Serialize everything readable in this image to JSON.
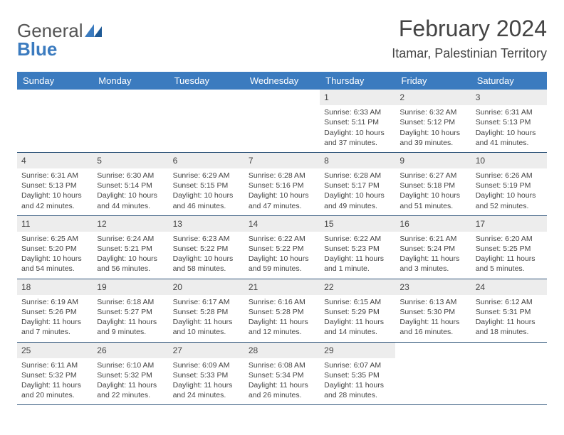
{
  "logo": {
    "part1": "General",
    "part2": "Blue"
  },
  "month_title": "February 2024",
  "location": "Itamar, Palestinian Territory",
  "weekdays": [
    "Sunday",
    "Monday",
    "Tuesday",
    "Wednesday",
    "Thursday",
    "Friday",
    "Saturday"
  ],
  "colors": {
    "header_bg": "#3b7bbf",
    "header_fg": "#ffffff",
    "daynum_bg": "#ededed",
    "rule": "#30557a",
    "text": "#444444"
  },
  "calendar": {
    "first_weekday_index": 4,
    "weeks": [
      [
        null,
        null,
        null,
        null,
        {
          "n": "1",
          "sunrise": "6:33 AM",
          "sunset": "5:11 PM",
          "daylight": "10 hours and 37 minutes."
        },
        {
          "n": "2",
          "sunrise": "6:32 AM",
          "sunset": "5:12 PM",
          "daylight": "10 hours and 39 minutes."
        },
        {
          "n": "3",
          "sunrise": "6:31 AM",
          "sunset": "5:13 PM",
          "daylight": "10 hours and 41 minutes."
        }
      ],
      [
        {
          "n": "4",
          "sunrise": "6:31 AM",
          "sunset": "5:13 PM",
          "daylight": "10 hours and 42 minutes."
        },
        {
          "n": "5",
          "sunrise": "6:30 AM",
          "sunset": "5:14 PM",
          "daylight": "10 hours and 44 minutes."
        },
        {
          "n": "6",
          "sunrise": "6:29 AM",
          "sunset": "5:15 PM",
          "daylight": "10 hours and 46 minutes."
        },
        {
          "n": "7",
          "sunrise": "6:28 AM",
          "sunset": "5:16 PM",
          "daylight": "10 hours and 47 minutes."
        },
        {
          "n": "8",
          "sunrise": "6:28 AM",
          "sunset": "5:17 PM",
          "daylight": "10 hours and 49 minutes."
        },
        {
          "n": "9",
          "sunrise": "6:27 AM",
          "sunset": "5:18 PM",
          "daylight": "10 hours and 51 minutes."
        },
        {
          "n": "10",
          "sunrise": "6:26 AM",
          "sunset": "5:19 PM",
          "daylight": "10 hours and 52 minutes."
        }
      ],
      [
        {
          "n": "11",
          "sunrise": "6:25 AM",
          "sunset": "5:20 PM",
          "daylight": "10 hours and 54 minutes."
        },
        {
          "n": "12",
          "sunrise": "6:24 AM",
          "sunset": "5:21 PM",
          "daylight": "10 hours and 56 minutes."
        },
        {
          "n": "13",
          "sunrise": "6:23 AM",
          "sunset": "5:22 PM",
          "daylight": "10 hours and 58 minutes."
        },
        {
          "n": "14",
          "sunrise": "6:22 AM",
          "sunset": "5:22 PM",
          "daylight": "10 hours and 59 minutes."
        },
        {
          "n": "15",
          "sunrise": "6:22 AM",
          "sunset": "5:23 PM",
          "daylight": "11 hours and 1 minute."
        },
        {
          "n": "16",
          "sunrise": "6:21 AM",
          "sunset": "5:24 PM",
          "daylight": "11 hours and 3 minutes."
        },
        {
          "n": "17",
          "sunrise": "6:20 AM",
          "sunset": "5:25 PM",
          "daylight": "11 hours and 5 minutes."
        }
      ],
      [
        {
          "n": "18",
          "sunrise": "6:19 AM",
          "sunset": "5:26 PM",
          "daylight": "11 hours and 7 minutes."
        },
        {
          "n": "19",
          "sunrise": "6:18 AM",
          "sunset": "5:27 PM",
          "daylight": "11 hours and 9 minutes."
        },
        {
          "n": "20",
          "sunrise": "6:17 AM",
          "sunset": "5:28 PM",
          "daylight": "11 hours and 10 minutes."
        },
        {
          "n": "21",
          "sunrise": "6:16 AM",
          "sunset": "5:28 PM",
          "daylight": "11 hours and 12 minutes."
        },
        {
          "n": "22",
          "sunrise": "6:15 AM",
          "sunset": "5:29 PM",
          "daylight": "11 hours and 14 minutes."
        },
        {
          "n": "23",
          "sunrise": "6:13 AM",
          "sunset": "5:30 PM",
          "daylight": "11 hours and 16 minutes."
        },
        {
          "n": "24",
          "sunrise": "6:12 AM",
          "sunset": "5:31 PM",
          "daylight": "11 hours and 18 minutes."
        }
      ],
      [
        {
          "n": "25",
          "sunrise": "6:11 AM",
          "sunset": "5:32 PM",
          "daylight": "11 hours and 20 minutes."
        },
        {
          "n": "26",
          "sunrise": "6:10 AM",
          "sunset": "5:32 PM",
          "daylight": "11 hours and 22 minutes."
        },
        {
          "n": "27",
          "sunrise": "6:09 AM",
          "sunset": "5:33 PM",
          "daylight": "11 hours and 24 minutes."
        },
        {
          "n": "28",
          "sunrise": "6:08 AM",
          "sunset": "5:34 PM",
          "daylight": "11 hours and 26 minutes."
        },
        {
          "n": "29",
          "sunrise": "6:07 AM",
          "sunset": "5:35 PM",
          "daylight": "11 hours and 28 minutes."
        },
        null,
        null
      ]
    ]
  },
  "labels": {
    "sunrise": "Sunrise:",
    "sunset": "Sunset:",
    "daylight": "Daylight:"
  }
}
